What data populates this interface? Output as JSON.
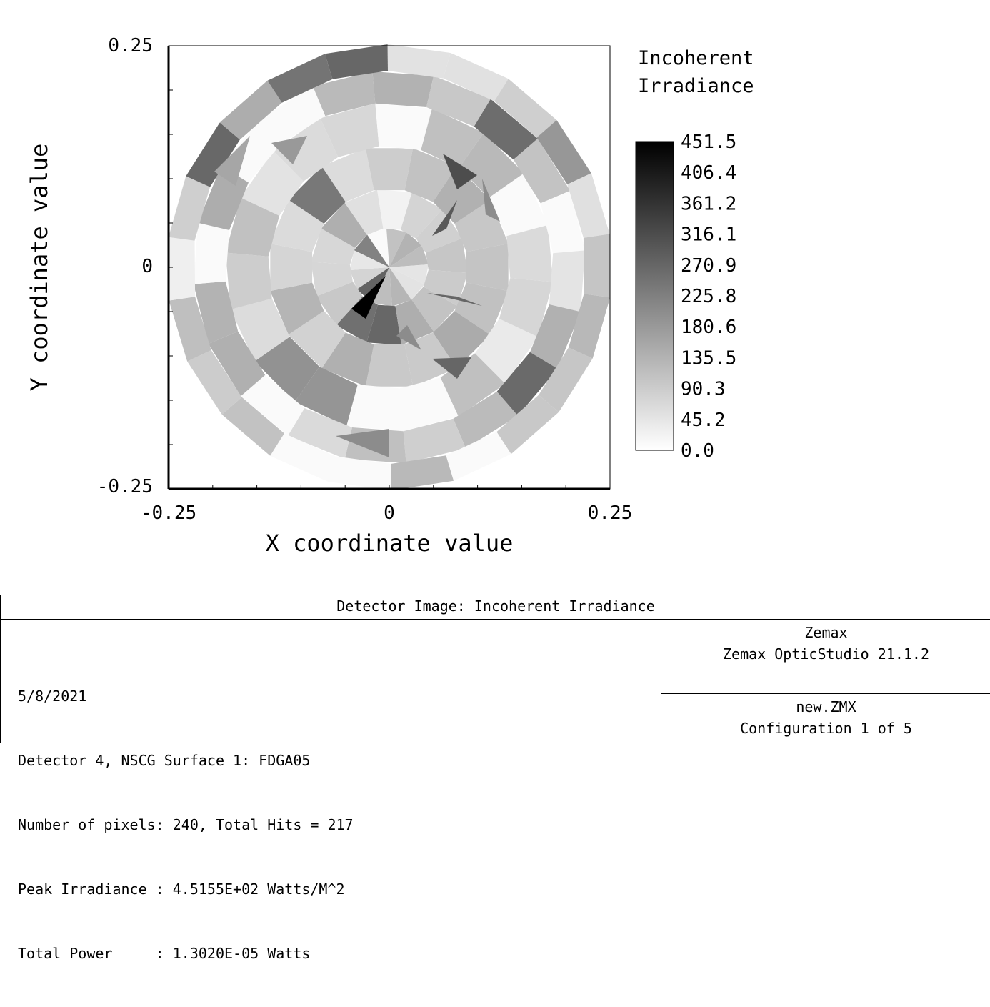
{
  "chart_data": {
    "type": "heatmap",
    "xlabel": "X coordinate value",
    "ylabel": "Y coordinate value",
    "xlim": [
      -0.25,
      0.25
    ],
    "ylim": [
      -0.25,
      0.25
    ],
    "x_tick_labels": [
      "-0.25",
      "0",
      "0.25"
    ],
    "y_tick_labels": [
      "0.25",
      "0",
      "-0.25"
    ],
    "colorbar": {
      "title": [
        "Incoherent",
        "Irradiance"
      ],
      "labels": [
        "451.5",
        "406.4",
        "361.2",
        "316.1",
        "270.9",
        "225.8",
        "180.6",
        "135.5",
        "90.3",
        "45.2",
        "0.0"
      ],
      "min": 0.0,
      "max": 451.5,
      "colormap": "grayscale: white (0) to black (max)"
    },
    "peak_value": 451.5,
    "description_of_pattern": "circular irradiance pattern with faceted gray wedges; single black peak near center slightly left and below"
  },
  "info": {
    "title": "Detector Image: Incoherent Irradiance",
    "left_lines": [
      "5/8/2021",
      "Detector 4, NSCG Surface 1: FDGA05",
      "Number of pixels: 240, Total Hits = 217",
      "Peak Irradiance : 4.5155E+02 Watts/M^2",
      "Total Power     : 1.3020E-05 Watts"
    ],
    "right_top_lines": [
      "Zemax",
      "Zemax OpticStudio 21.1.2"
    ],
    "right_bottom_lines": [
      "new.ZMX",
      "Configuration 1 of 5"
    ]
  }
}
